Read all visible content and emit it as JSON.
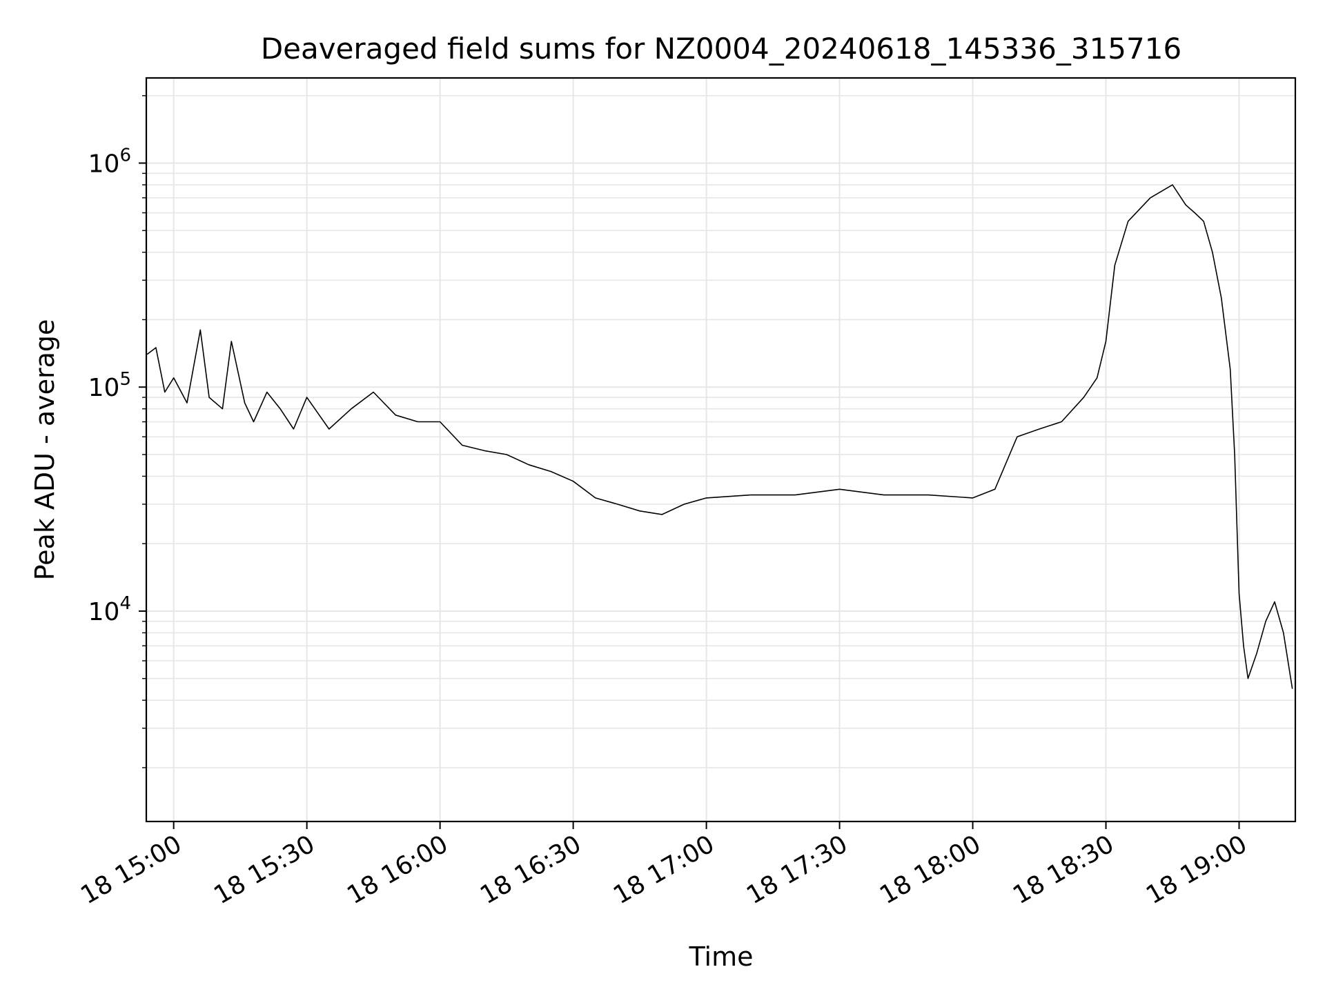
{
  "chart_data": {
    "type": "line",
    "title": "Deaveraged field sums for NZ0004_20240618_145336_315716",
    "xlabel": "Time",
    "ylabel": "Peak ADU - average",
    "x_axis_kind": "datetime",
    "xlim": [
      "2024-06-18 14:53:50",
      "2024-06-18 19:12:40"
    ],
    "x_tick_values": [
      "2024-06-18 15:00:00",
      "2024-06-18 15:30:00",
      "2024-06-18 16:00:00",
      "2024-06-18 16:30:00",
      "2024-06-18 17:00:00",
      "2024-06-18 17:30:00",
      "2024-06-18 18:00:00",
      "2024-06-18 18:30:00",
      "2024-06-18 19:00:00"
    ],
    "x_tick_labels": [
      "18 15:00",
      "18 15:30",
      "18 16:00",
      "18 16:30",
      "18 17:00",
      "18 17:30",
      "18 18:00",
      "18 18:30",
      "18 19:00"
    ],
    "y_scale": "log",
    "ylim": [
      1150,
      2400000
    ],
    "y_tick_values": [
      10000,
      100000,
      1000000
    ],
    "y_tick_labels": [
      {
        "base": "10",
        "exp": "4"
      },
      {
        "base": "10",
        "exp": "5"
      },
      {
        "base": "10",
        "exp": "6"
      }
    ],
    "grid": true,
    "line_color": "#000000",
    "grid_color": "#e6e6e6",
    "series": [
      {
        "x": [
          "2024-06-18 14:54:00",
          "2024-06-18 14:56:00",
          "2024-06-18 14:58:00",
          "2024-06-18 15:00:00",
          "2024-06-18 15:03:00",
          "2024-06-18 15:06:00",
          "2024-06-18 15:08:00",
          "2024-06-18 15:11:00",
          "2024-06-18 15:13:00",
          "2024-06-18 15:16:00",
          "2024-06-18 15:18:00",
          "2024-06-18 15:21:00",
          "2024-06-18 15:24:00",
          "2024-06-18 15:27:00",
          "2024-06-18 15:30:00",
          "2024-06-18 15:35:00",
          "2024-06-18 15:40:00",
          "2024-06-18 15:45:00",
          "2024-06-18 15:50:00",
          "2024-06-18 15:55:00",
          "2024-06-18 16:00:00",
          "2024-06-18 16:05:00",
          "2024-06-18 16:10:00",
          "2024-06-18 16:15:00",
          "2024-06-18 16:20:00",
          "2024-06-18 16:25:00",
          "2024-06-18 16:30:00",
          "2024-06-18 16:35:00",
          "2024-06-18 16:40:00",
          "2024-06-18 16:45:00",
          "2024-06-18 16:50:00",
          "2024-06-18 16:55:00",
          "2024-06-18 17:00:00",
          "2024-06-18 17:10:00",
          "2024-06-18 17:20:00",
          "2024-06-18 17:30:00",
          "2024-06-18 17:40:00",
          "2024-06-18 17:50:00",
          "2024-06-18 18:00:00",
          "2024-06-18 18:05:00",
          "2024-06-18 18:10:00",
          "2024-06-18 18:15:00",
          "2024-06-18 18:20:00",
          "2024-06-18 18:25:00",
          "2024-06-18 18:28:00",
          "2024-06-18 18:30:00",
          "2024-06-18 18:32:00",
          "2024-06-18 18:35:00",
          "2024-06-18 18:40:00",
          "2024-06-18 18:45:00",
          "2024-06-18 18:48:00",
          "2024-06-18 18:50:00",
          "2024-06-18 18:52:00",
          "2024-06-18 18:54:00",
          "2024-06-18 18:56:00",
          "2024-06-18 18:58:00",
          "2024-06-18 18:59:00",
          "2024-06-18 19:00:00",
          "2024-06-18 19:01:00",
          "2024-06-18 19:02:00",
          "2024-06-18 19:04:00",
          "2024-06-18 19:06:00",
          "2024-06-18 19:08:00",
          "2024-06-18 19:10:00",
          "2024-06-18 19:12:00"
        ],
        "y": [
          140000,
          150000,
          95000,
          110000,
          85000,
          180000,
          90000,
          80000,
          160000,
          85000,
          70000,
          95000,
          80000,
          65000,
          90000,
          65000,
          80000,
          95000,
          75000,
          70000,
          70000,
          55000,
          52000,
          50000,
          45000,
          42000,
          38000,
          32000,
          30000,
          28000,
          27000,
          30000,
          32000,
          33000,
          33000,
          35000,
          33000,
          33000,
          32000,
          35000,
          60000,
          65000,
          70000,
          90000,
          110000,
          160000,
          350000,
          550000,
          700000,
          800000,
          650000,
          600000,
          550000,
          400000,
          250000,
          120000,
          50000,
          12000,
          7000,
          5000,
          6500,
          9000,
          11000,
          8000,
          4500
        ]
      }
    ]
  }
}
